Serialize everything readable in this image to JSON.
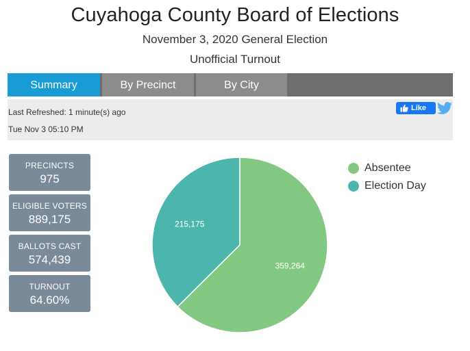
{
  "header": {
    "title": "Cuyahoga County Board of Elections",
    "subtitle": "November 3, 2020 General Election",
    "subtitle2": "Unofficial Turnout"
  },
  "tabs": [
    {
      "label": "Summary",
      "active": true
    },
    {
      "label": "By Precinct",
      "active": false
    },
    {
      "label": "By City",
      "active": false
    }
  ],
  "info": {
    "refreshed": "Last Refreshed: 1 minute(s) ago",
    "datetime": "Tue Nov 3 05:10 PM",
    "like_label": "Like"
  },
  "stats": [
    {
      "label": "PRECINCTS",
      "value": "975"
    },
    {
      "label": "ELIGIBLE VOTERS",
      "value": "889,175"
    },
    {
      "label": "BALLOTS CAST",
      "value": "574,439"
    },
    {
      "label": "TURNOUT",
      "value": "64.60%"
    }
  ],
  "colors": {
    "tab_active": "#199bd6",
    "tab_inactive": "#8c8c8c",
    "absentee": "#82c882",
    "election_day": "#4db6ac",
    "stat_box": "#7a8a99"
  },
  "chart_data": {
    "type": "pie",
    "categories": [
      "Absentee",
      "Election Day"
    ],
    "values": [
      359264,
      215175
    ],
    "labels": [
      "359,264",
      "215,175"
    ],
    "colors": [
      "#82c882",
      "#4db6ac"
    ],
    "legend": "top-right"
  }
}
